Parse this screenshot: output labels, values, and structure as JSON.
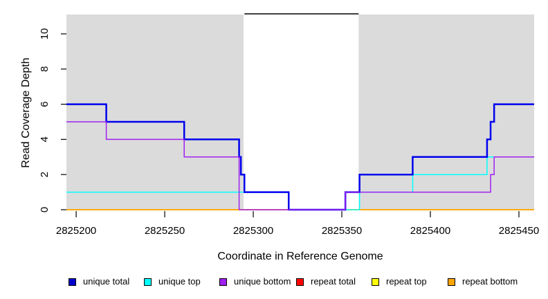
{
  "figure": {
    "kind": "R coverage plot",
    "x_axis_title": "Coordinate in Reference Genome",
    "y_axis_title": "Read Coverage Depth"
  },
  "chart_data": {
    "type": "line",
    "step": true,
    "title": "",
    "xlabel": "Coordinate in Reference Genome",
    "ylabel": "Read Coverage Depth",
    "xlim": [
      2825194.5,
      2825458.6
    ],
    "ylim": [
      0,
      11.1
    ],
    "x_ticks": [
      2825200,
      2825250,
      2825300,
      2825350,
      2825400,
      2825450
    ],
    "y_ticks": [
      0,
      2,
      4,
      6,
      8,
      10
    ],
    "grid": false,
    "plot_background": "#ffffff",
    "shaded_regions": [
      {
        "from": 2825194.5,
        "to": 2825294.5,
        "color": "#dbdbdb"
      },
      {
        "from": 2825359.5,
        "to": 2825458.6,
        "color": "#dbdbdb"
      }
    ],
    "unshaded_region": {
      "from": 2825294.5,
      "to": 2825359.5
    },
    "top_marker_line": {
      "from": 2825295,
      "to": 2825359.5,
      "color": "#000000"
    },
    "series": [
      {
        "name": "repeat total",
        "color": "#ff0000",
        "width": 1.5,
        "points": [
          [
            2825194.5,
            0
          ],
          [
            2825458.6,
            0
          ]
        ]
      },
      {
        "name": "repeat top",
        "color": "#ffff00",
        "width": 1.5,
        "points": [
          [
            2825194.5,
            0
          ],
          [
            2825458.6,
            0
          ]
        ]
      },
      {
        "name": "repeat bottom",
        "color": "#ffa500",
        "width": 1.5,
        "points": [
          [
            2825194.5,
            0
          ],
          [
            2825458.6,
            0
          ]
        ]
      },
      {
        "name": "unique top",
        "color": "#00ffff",
        "width": 1.5,
        "points": [
          [
            2825194.5,
            1
          ],
          [
            2825320,
            0
          ],
          [
            2825360,
            1
          ],
          [
            2825390,
            2
          ],
          [
            2825432,
            3
          ],
          [
            2825458.6,
            3
          ]
        ]
      },
      {
        "name": "unique total",
        "color": "#0000ee",
        "width": 2.5,
        "points": [
          [
            2825194.5,
            6
          ],
          [
            2825217,
            5
          ],
          [
            2825261,
            4
          ],
          [
            2825292,
            3
          ],
          [
            2825293,
            2
          ],
          [
            2825295,
            1
          ],
          [
            2825320,
            0
          ],
          [
            2825352,
            1
          ],
          [
            2825360,
            2
          ],
          [
            2825390,
            3
          ],
          [
            2825432,
            4
          ],
          [
            2825434,
            5
          ],
          [
            2825436,
            6
          ],
          [
            2825458.6,
            6
          ]
        ]
      },
      {
        "name": "unique bottom",
        "color": "#a020f0",
        "width": 1.5,
        "points": [
          [
            2825194.5,
            5
          ],
          [
            2825217,
            4
          ],
          [
            2825261,
            3
          ],
          [
            2825292,
            0
          ],
          [
            2825352,
            1
          ],
          [
            2825434,
            2
          ],
          [
            2825436,
            3
          ],
          [
            2825458.6,
            3
          ]
        ]
      }
    ],
    "legend_position": "bottom"
  },
  "legend": {
    "items": [
      {
        "label": "unique total",
        "color": "#0000cd"
      },
      {
        "label": "unique top",
        "color": "#00ffff"
      },
      {
        "label": "unique bottom",
        "color": "#a020f0"
      },
      {
        "label": "repeat total",
        "color": "#ff0000"
      },
      {
        "label": "repeat top",
        "color": "#ffff00"
      },
      {
        "label": "repeat bottom",
        "color": "#ffa500"
      }
    ]
  },
  "colors": {
    "shading": "#dbdbdb",
    "axis_text": "#000000"
  }
}
